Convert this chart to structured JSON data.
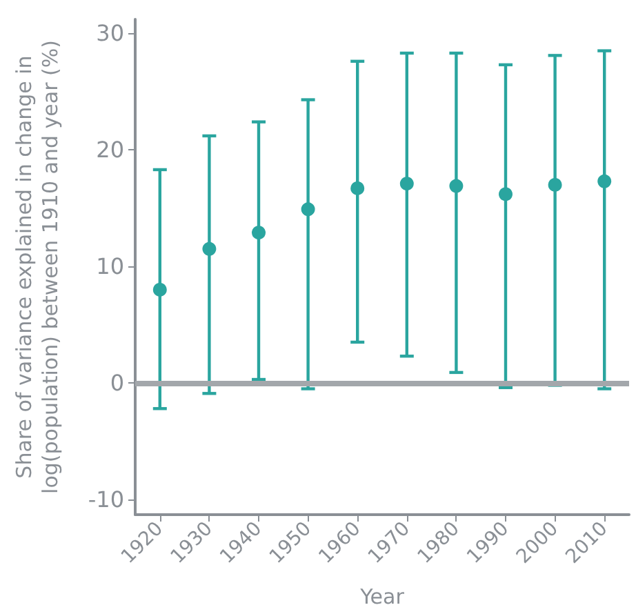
{
  "chart_data": {
    "type": "scatter",
    "xlabel": "Year",
    "ylabel": "Share of variance explained in change in log(population) between 1910 and year (%)",
    "categories": [
      "1920",
      "1930",
      "1940",
      "1950",
      "1960",
      "1970",
      "1980",
      "1990",
      "2000",
      "2010"
    ],
    "values": [
      8.0,
      11.5,
      12.9,
      14.9,
      16.7,
      17.1,
      16.9,
      16.2,
      17.0,
      17.3
    ],
    "errors": [
      [
        -2.2,
        18.3
      ],
      [
        -0.9,
        21.2
      ],
      [
        0.3,
        22.4
      ],
      [
        -0.5,
        24.3
      ],
      [
        3.5,
        27.6
      ],
      [
        2.3,
        28.3
      ],
      [
        0.9,
        28.3
      ],
      [
        -0.4,
        27.3
      ],
      [
        -0.2,
        28.1
      ],
      [
        -0.5,
        28.5
      ]
    ],
    "color": "#2aa59f",
    "marker": "circle",
    "ylim": [
      -11.3,
      31.2
    ],
    "yticks": [
      -10,
      0,
      10,
      20,
      30
    ],
    "ref_lines": [
      {
        "axis": "y",
        "value": 0,
        "label": null,
        "color": "#a3a7ab"
      }
    ]
  }
}
